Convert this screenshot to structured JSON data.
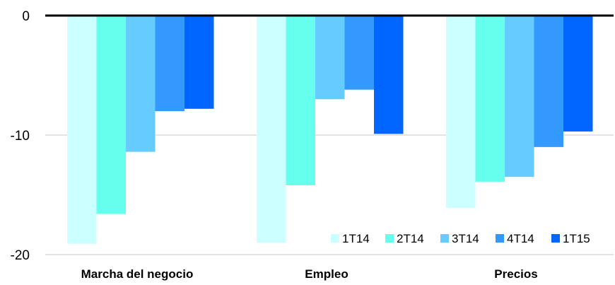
{
  "chart_data": {
    "type": "bar",
    "title": "",
    "xlabel": "",
    "ylabel": "",
    "categories": [
      "Marcha del negocio",
      "Empleo",
      "Precios"
    ],
    "series": [
      {
        "name": "1T14",
        "color": "#ccffff",
        "values": [
          -19.1,
          -19.0,
          -16.1
        ]
      },
      {
        "name": "2T14",
        "color": "#66ffee",
        "values": [
          -16.6,
          -14.2,
          -13.9
        ]
      },
      {
        "name": "3T14",
        "color": "#66ccff",
        "values": [
          -11.4,
          -7.0,
          -13.5
        ]
      },
      {
        "name": "4T14",
        "color": "#3399ff",
        "values": [
          -8.0,
          -6.2,
          -11.0
        ]
      },
      {
        "name": "1T15",
        "color": "#0066ff",
        "values": [
          -7.8,
          -9.9,
          -9.7
        ]
      }
    ],
    "ylim": [
      -20,
      0
    ],
    "yticks": [
      0,
      -10,
      -20
    ],
    "grid": true,
    "legend": "bottom-right"
  }
}
